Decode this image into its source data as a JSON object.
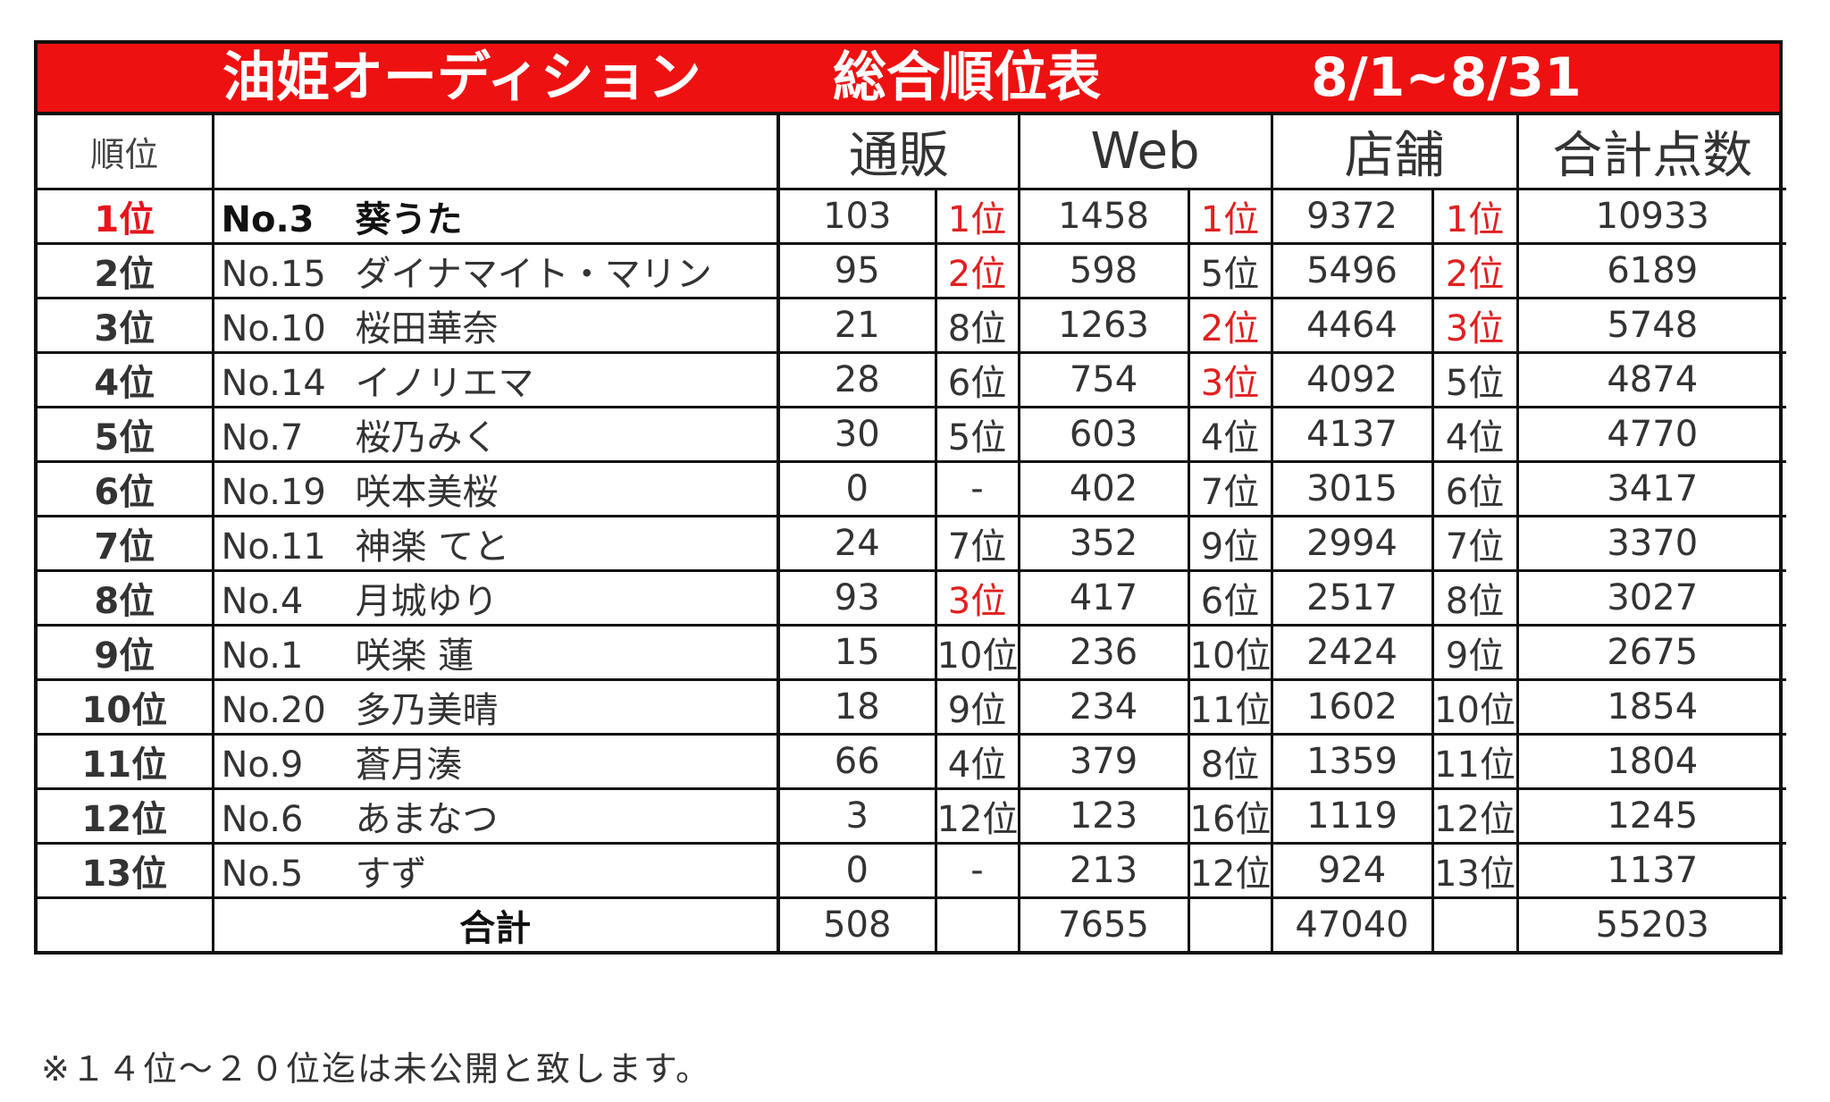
{
  "title": {
    "main": "油姫オーディション",
    "sub": "総合順位表",
    "period": "8/1~8/31"
  },
  "headers": {
    "rank": "順位",
    "name": "",
    "mail_order": "通販",
    "web": "Web",
    "store": "店舗",
    "total": "合計点数"
  },
  "rows": [
    {
      "rank": "1位",
      "no": "No.3",
      "name": "葵うた",
      "mail": "103",
      "mail_rank": "1位",
      "web": "1458",
      "web_rank": "1位",
      "store": "9372",
      "store_rank": "1位",
      "total": "10933"
    },
    {
      "rank": "2位",
      "no": "No.15",
      "name": "ダイナマイト・マリン",
      "mail": "95",
      "mail_rank": "2位",
      "web": "598",
      "web_rank": "5位",
      "store": "5496",
      "store_rank": "2位",
      "total": "6189"
    },
    {
      "rank": "3位",
      "no": "No.10",
      "name": "桜田華奈",
      "mail": "21",
      "mail_rank": "8位",
      "web": "1263",
      "web_rank": "2位",
      "store": "4464",
      "store_rank": "3位",
      "total": "5748"
    },
    {
      "rank": "4位",
      "no": "No.14",
      "name": "イノリエマ",
      "mail": "28",
      "mail_rank": "6位",
      "web": "754",
      "web_rank": "3位",
      "store": "4092",
      "store_rank": "5位",
      "total": "4874"
    },
    {
      "rank": "5位",
      "no": "No.7",
      "name": "桜乃みく",
      "mail": "30",
      "mail_rank": "5位",
      "web": "603",
      "web_rank": "4位",
      "store": "4137",
      "store_rank": "4位",
      "total": "4770"
    },
    {
      "rank": "6位",
      "no": "No.19",
      "name": "咲本美桜",
      "mail": "0",
      "mail_rank": "-",
      "web": "402",
      "web_rank": "7位",
      "store": "3015",
      "store_rank": "6位",
      "total": "3417"
    },
    {
      "rank": "7位",
      "no": "No.11",
      "name": "神楽 てと",
      "mail": "24",
      "mail_rank": "7位",
      "web": "352",
      "web_rank": "9位",
      "store": "2994",
      "store_rank": "7位",
      "total": "3370"
    },
    {
      "rank": "8位",
      "no": "No.4",
      "name": "月城ゆり",
      "mail": "93",
      "mail_rank": "3位",
      "web": "417",
      "web_rank": "6位",
      "store": "2517",
      "store_rank": "8位",
      "total": "3027"
    },
    {
      "rank": "9位",
      "no": "No.1",
      "name": "咲楽 蓮",
      "mail": "15",
      "mail_rank": "10位",
      "web": "236",
      "web_rank": "10位",
      "store": "2424",
      "store_rank": "9位",
      "total": "2675"
    },
    {
      "rank": "10位",
      "no": "No.20",
      "name": "多乃美晴",
      "mail": "18",
      "mail_rank": "9位",
      "web": "234",
      "web_rank": "11位",
      "store": "1602",
      "store_rank": "10位",
      "total": "1854"
    },
    {
      "rank": "11位",
      "no": "No.9",
      "name": "蒼月湊",
      "mail": "66",
      "mail_rank": "4位",
      "web": "379",
      "web_rank": "8位",
      "store": "1359",
      "store_rank": "11位",
      "total": "1804"
    },
    {
      "rank": "12位",
      "no": "No.6",
      "name": "あまなつ",
      "mail": "3",
      "mail_rank": "12位",
      "web": "123",
      "web_rank": "16位",
      "store": "1119",
      "store_rank": "12位",
      "total": "1245"
    },
    {
      "rank": "13位",
      "no": "No.5",
      "name": "すず",
      "mail": "0",
      "mail_rank": "-",
      "web": "213",
      "web_rank": "12位",
      "store": "924",
      "store_rank": "13位",
      "total": "1137"
    }
  ],
  "totals": {
    "label": "合計",
    "mail": "508",
    "web": "7655",
    "store": "47040",
    "total": "55203"
  },
  "footnote": "※１４位～２０位迄は未公開と致します。",
  "colors": {
    "title_bg": "#ee1111",
    "title_text": "#ffffff",
    "highlight_red": "#e8141d",
    "border": "#111111"
  }
}
